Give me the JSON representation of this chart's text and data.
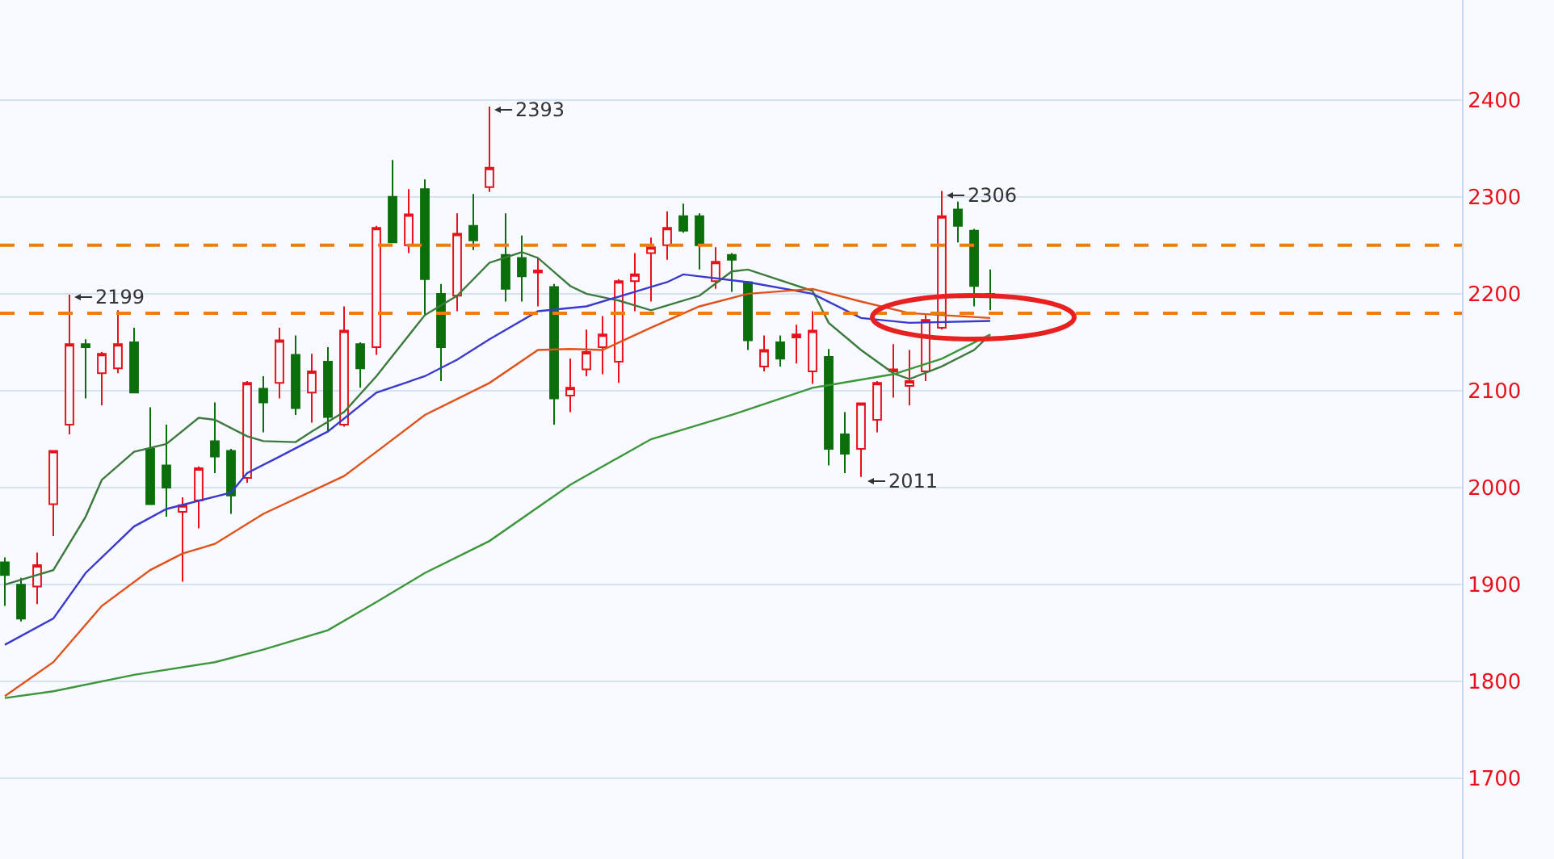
{
  "chart_data": {
    "type": "candlestick",
    "categories": [
      null,
      null,
      null,
      null,
      null,
      null,
      null,
      null,
      null,
      null,
      null,
      null,
      null,
      null,
      null,
      null,
      null,
      null,
      null,
      null,
      null,
      null,
      null,
      null,
      null,
      null,
      null,
      null,
      null,
      null,
      null,
      null,
      null,
      null,
      null,
      null,
      null,
      null,
      null,
      null,
      null,
      null,
      null,
      null,
      null,
      null,
      null,
      null,
      null,
      null,
      null,
      null,
      null,
      null,
      null,
      null,
      null,
      null,
      null,
      null,
      null,
      null
    ],
    "ohlc": [
      [
        1923,
        1928,
        1878,
        1910
      ],
      [
        1900,
        1907,
        1862,
        1865
      ],
      [
        1898,
        1933,
        1880,
        1920
      ],
      [
        1983,
        2038,
        1950,
        2038
      ],
      [
        2065,
        2199,
        2055,
        2148
      ],
      [
        2148,
        2153,
        2092,
        2145
      ],
      [
        2118,
        2140,
        2085,
        2138
      ],
      [
        2123,
        2183,
        2118,
        2148
      ],
      [
        2150,
        2165,
        2098,
        2098
      ],
      [
        2040,
        2083,
        1983,
        1983
      ],
      [
        2023,
        2065,
        1970,
        2000
      ],
      [
        1975,
        1990,
        1903,
        1982
      ],
      [
        1987,
        2022,
        1958,
        2020
      ],
      [
        2048,
        2088,
        2015,
        2032
      ],
      [
        2038,
        2040,
        1973,
        1992
      ],
      [
        2010,
        2110,
        2005,
        2108
      ],
      [
        2102,
        2115,
        2057,
        2088
      ],
      [
        2108,
        2165,
        2092,
        2152
      ],
      [
        2137,
        2157,
        2075,
        2082
      ],
      [
        2098,
        2138,
        2067,
        2120
      ],
      [
        2130,
        2145,
        2057,
        2073
      ],
      [
        2065,
        2187,
        2063,
        2162
      ],
      [
        2148,
        2150,
        2103,
        2123
      ],
      [
        2145,
        2270,
        2137,
        2268
      ],
      [
        2300,
        2338,
        2253,
        2253
      ],
      [
        2250,
        2308,
        2242,
        2282
      ],
      [
        2308,
        2318,
        2178,
        2215
      ],
      [
        2200,
        2210,
        2110,
        2145
      ],
      [
        2198,
        2283,
        2182,
        2262
      ],
      [
        2270,
        2303,
        2245,
        2255
      ],
      [
        2310,
        2393,
        2305,
        2330
      ],
      [
        2240,
        2283,
        2192,
        2205
      ],
      [
        2237,
        2260,
        2192,
        2218
      ],
      [
        2222,
        2237,
        2187,
        2224
      ],
      [
        2207,
        2210,
        2065,
        2092
      ],
      [
        2095,
        2133,
        2078,
        2103
      ],
      [
        2122,
        2163,
        2115,
        2140
      ],
      [
        2145,
        2177,
        2117,
        2158
      ],
      [
        2130,
        2215,
        2108,
        2213
      ],
      [
        2213,
        2242,
        2182,
        2220
      ],
      [
        2242,
        2258,
        2192,
        2248
      ],
      [
        2250,
        2285,
        2235,
        2268
      ],
      [
        2280,
        2293,
        2263,
        2265
      ],
      [
        2280,
        2283,
        2225,
        2250
      ],
      [
        2213,
        2248,
        2205,
        2233
      ],
      [
        2240,
        2242,
        2202,
        2235
      ],
      [
        2212,
        2213,
        2142,
        2152
      ],
      [
        2125,
        2157,
        2120,
        2142
      ],
      [
        2150,
        2157,
        2125,
        2133
      ],
      [
        2155,
        2168,
        2128,
        2158
      ],
      [
        2120,
        2182,
        2107,
        2162
      ],
      [
        2135,
        2143,
        2023,
        2040
      ],
      [
        2055,
        2078,
        2015,
        2035
      ],
      [
        2040,
        2088,
        2011,
        2087
      ],
      [
        2070,
        2110,
        2057,
        2108
      ],
      [
        2120,
        2148,
        2093,
        2122
      ],
      [
        2105,
        2142,
        2085,
        2110
      ],
      [
        2120,
        2178,
        2110,
        2173
      ],
      [
        2165,
        2306,
        2163,
        2280
      ],
      [
        2287,
        2295,
        2253,
        2270
      ],
      [
        2265,
        2267,
        2187,
        2208
      ],
      [
        2200,
        2225,
        2183,
        2198
      ]
    ],
    "colors": [
      "#0a6e0a",
      "#0a6e0a",
      "#e8101a",
      "#e8101a",
      "#e8101a",
      "#0a6e0a",
      "#e8101a",
      "#e8101a",
      "#0a6e0a",
      "#0a6e0a",
      "#0a6e0a",
      "#e8101a",
      "#e8101a",
      "#0a6e0a",
      "#0a6e0a",
      "#e8101a",
      "#0a6e0a",
      "#e8101a",
      "#0a6e0a",
      "#e8101a",
      "#0a6e0a",
      "#e8101a",
      "#0a6e0a",
      "#e8101a",
      "#0a6e0a",
      "#e8101a",
      "#0a6e0a",
      "#0a6e0a",
      "#e8101a",
      "#0a6e0a",
      "#e8101a",
      "#0a6e0a",
      "#0a6e0a",
      "#e8101a",
      "#0a6e0a",
      "#e8101a",
      "#e8101a",
      "#e8101a",
      "#e8101a",
      "#e8101a",
      "#e8101a",
      "#e8101a",
      "#0a6e0a",
      "#0a6e0a",
      "#e8101a",
      "#0a6e0a",
      "#0a6e0a",
      "#e8101a",
      "#0a6e0a",
      "#e8101a",
      "#e8101a",
      "#0a6e0a",
      "#0a6e0a",
      "#e8101a",
      "#e8101a",
      "#e8101a",
      "#e8101a",
      "#e8101a",
      "#e8101a",
      "#0a6e0a",
      "#0a6e0a",
      "#0a6e0a"
    ],
    "series": [
      {
        "type": "line",
        "color": "#3d7a3d",
        "values": [
          1900,
          null,
          null,
          1915,
          null,
          1970,
          2008,
          null,
          2037,
          null,
          2045,
          null,
          2072,
          2070,
          null,
          2053,
          2048,
          null,
          2047,
          2058,
          null,
          2078,
          null,
          2115,
          null,
          null,
          2178,
          null,
          2198,
          null,
          2232,
          null,
          2243,
          2237,
          null,
          2208,
          2200,
          null,
          2193,
          null,
          2183,
          2188,
          null,
          2198,
          null,
          2223,
          2225,
          null,
          null,
          null,
          2203,
          2170,
          null,
          2142,
          null,
          2118,
          2112,
          null,
          2125,
          null,
          2142,
          2158
        ]
      },
      {
        "type": "line",
        "color": "#3a3acc",
        "values": [
          1838,
          null,
          null,
          1865,
          null,
          1912,
          null,
          null,
          1960,
          null,
          1978,
          null,
          null,
          null,
          1995,
          2015,
          null,
          2032,
          null,
          null,
          2058,
          null,
          null,
          2098,
          null,
          null,
          2115,
          null,
          2132,
          null,
          2153,
          null,
          null,
          2182,
          null,
          null,
          2187,
          null,
          null,
          null,
          2207,
          2212,
          2220,
          null,
          null,
          null,
          2212,
          null,
          null,
          null,
          2200,
          null,
          null,
          2175,
          null,
          null,
          2170,
          null,
          null,
          null,
          null,
          2172
        ]
      },
      {
        "type": "line",
        "color": "#e0521a",
        "values": [
          1785,
          null,
          null,
          1820,
          null,
          null,
          1878,
          null,
          null,
          1915,
          null,
          1932,
          null,
          1942,
          null,
          null,
          1973,
          null,
          null,
          null,
          null,
          2012,
          null,
          2037,
          null,
          null,
          2075,
          null,
          null,
          null,
          2108,
          null,
          null,
          2142,
          null,
          2143,
          null,
          2142,
          null,
          null,
          2165,
          null,
          null,
          2187,
          null,
          null,
          2200,
          null,
          null,
          null,
          2205,
          null,
          null,
          2192,
          null,
          null,
          2180,
          null,
          null,
          null,
          null,
          2175
        ]
      },
      {
        "type": "line",
        "color": "#3c963c",
        "values": [
          1783,
          null,
          null,
          1790,
          null,
          null,
          null,
          null,
          1807,
          null,
          null,
          null,
          null,
          1820,
          null,
          null,
          1833,
          null,
          null,
          null,
          1853,
          null,
          null,
          1882,
          null,
          null,
          1912,
          null,
          null,
          null,
          1945,
          null,
          null,
          null,
          null,
          2003,
          null,
          null,
          null,
          null,
          2050,
          null,
          null,
          null,
          null,
          2075,
          null,
          null,
          null,
          null,
          2103,
          null,
          null,
          null,
          null,
          2117,
          null,
          null,
          2133,
          null,
          null,
          2158
        ]
      }
    ],
    "ylim": [
      1617,
      2503
    ],
    "yticks": [
      1700,
      1800,
      1900,
      2000,
      2100,
      2200,
      2300,
      2400
    ],
    "grid": "y",
    "tick_labels": "y",
    "ref_lines": [
      {
        "axis": "y",
        "value": 2250,
        "color": "#f07c10",
        "line_style": "dashed"
      },
      {
        "axis": "y",
        "value": 2180,
        "color": "#f07c10",
        "line_style": "dashed"
      }
    ],
    "annotations": [
      "2199",
      "2393",
      "2306",
      "2011"
    ]
  }
}
